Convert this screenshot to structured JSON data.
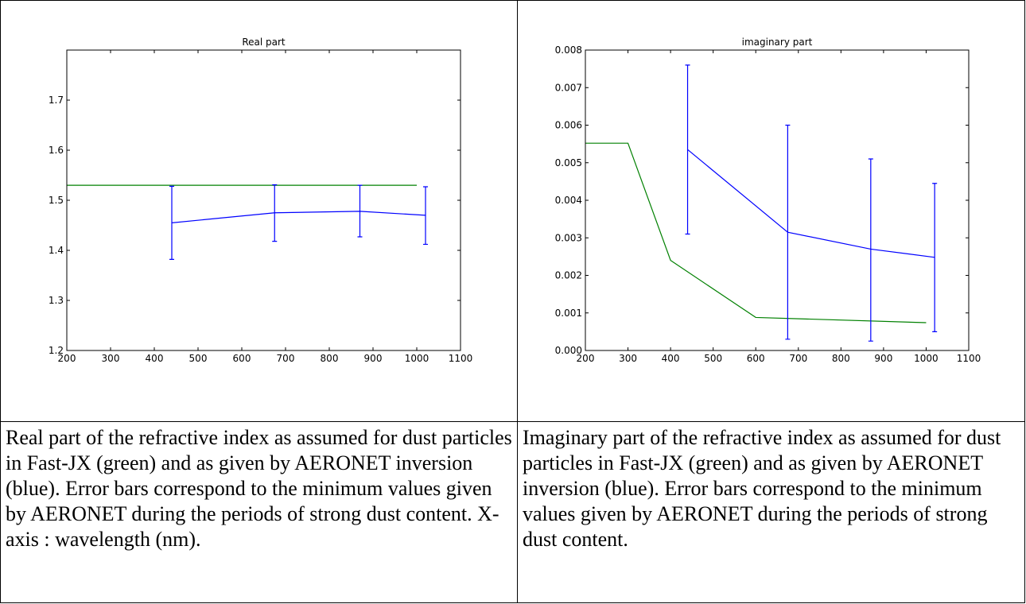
{
  "chart_data": [
    {
      "type": "line",
      "title": "Real part",
      "xlim": [
        200,
        1100
      ],
      "xticks": [
        200,
        300,
        400,
        500,
        600,
        700,
        800,
        900,
        1000,
        1100
      ],
      "ylim": [
        1.2,
        1.8
      ],
      "yticks": [
        1.2,
        1.3,
        1.4,
        1.5,
        1.6,
        1.7
      ],
      "grid": false,
      "series": [
        {
          "color": "#008000",
          "x": [
            200,
            1000
          ],
          "values": [
            1.53,
            1.53
          ]
        },
        {
          "color": "#0000ff",
          "x": [
            440,
            675,
            870,
            1020
          ],
          "values": [
            1.455,
            1.475,
            1.478,
            1.47
          ],
          "lower": [
            1.382,
            1.418,
            1.427,
            1.412
          ],
          "upper": [
            1.528,
            1.531,
            1.53,
            1.527
          ]
        }
      ]
    },
    {
      "type": "line",
      "title": "imaginary part",
      "xlim": [
        200,
        1100
      ],
      "xticks": [
        200,
        300,
        400,
        500,
        600,
        700,
        800,
        900,
        1000,
        1100
      ],
      "ylim": [
        0,
        0.008
      ],
      "yticks": [
        {
          "value": 0,
          "label": "0.000"
        },
        0.001,
        0.002,
        0.003,
        0.004,
        0.005,
        0.006,
        0.007,
        0.008
      ],
      "grid": false,
      "series": [
        {
          "color": "#008000",
          "x": [
            200,
            300,
            400,
            600,
            1000
          ],
          "values": [
            0.00552,
            0.00552,
            0.0024,
            0.00088,
            0.00074
          ]
        },
        {
          "color": "#0000ff",
          "x": [
            440,
            675,
            870,
            1020
          ],
          "values": [
            0.00535,
            0.00315,
            0.0027,
            0.00248
          ],
          "lower": [
            0.0031,
            0.0003,
            0.00025,
            0.0005
          ],
          "upper": [
            0.0076,
            0.006,
            0.0051,
            0.00445
          ]
        }
      ]
    }
  ],
  "captions": [
    "Real part of the refractive index as assumed for dust particles in Fast-JX (green) and as given by AERONET inversion (blue). Error bars correspond to the minimum values given by AERONET during the periods of strong dust content. X-axis : wavelength (nm).",
    "Imaginary part of the refractive index as assumed for dust particles in Fast-JX (green) and as given by AERONET inversion (blue). Error bars correspond to the minimum values given by AERONET during the periods of strong dust content."
  ]
}
